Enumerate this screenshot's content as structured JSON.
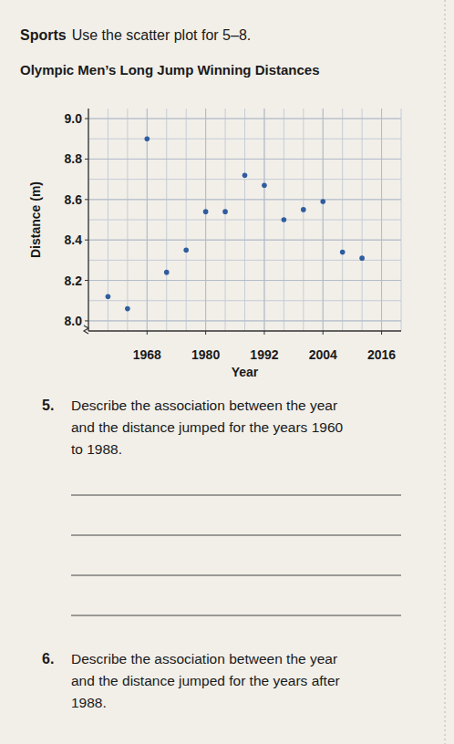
{
  "chart_data": {
    "type": "scatter",
    "title": "Olympic Men’s Long Jump Winning Distances",
    "x_label": "Year",
    "y_label": "Distance (m)",
    "x": [
      1960,
      1964,
      1968,
      1972,
      1976,
      1980,
      1984,
      1988,
      1992,
      1996,
      2000,
      2004,
      2008,
      2012
    ],
    "values": [
      8.12,
      8.06,
      8.9,
      8.24,
      8.35,
      8.54,
      8.54,
      8.72,
      8.67,
      8.5,
      8.55,
      8.59,
      8.34,
      8.31
    ],
    "color": "#2f5d9e",
    "marker": "circle",
    "xlim": [
      1956,
      2020
    ],
    "xticks": [
      1968,
      1980,
      1992,
      2004,
      2016
    ],
    "ylim": [
      7.95,
      9.05
    ],
    "yticks": [
      {
        "value": 9,
        "label": "9.0"
      },
      8.8,
      8.6,
      8.4,
      8.2,
      {
        "value": 8,
        "label": "8.0"
      }
    ],
    "grid": true
  },
  "page": {
    "section": "Sports",
    "instruction": "Use the scatter plot for 5–8.",
    "questions": [
      {
        "number": "5.",
        "lines": [
          "Describe the association between the year",
          "and the distance jumped for the years 1960",
          "to 1988."
        ]
      },
      {
        "number": "6.",
        "lines": [
          "Describe the association between the year",
          "and the distance jumped for the years after",
          "1988."
        ]
      }
    ]
  }
}
